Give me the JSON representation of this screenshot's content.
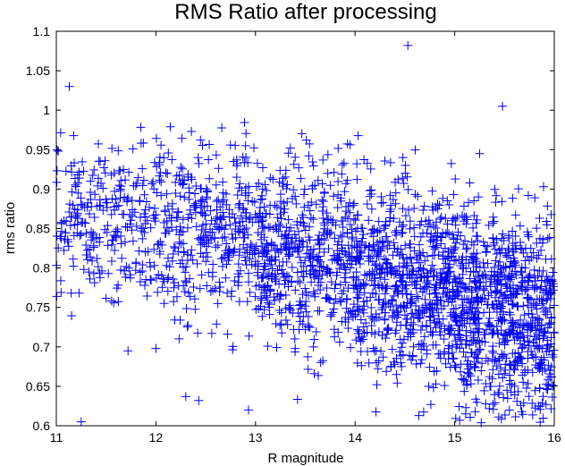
{
  "chart_data": {
    "type": "scatter",
    "title": "RMS Ratio after processing",
    "xlabel": "R magnitude",
    "ylabel": "rms ratio",
    "xlim": [
      11,
      16
    ],
    "ylim": [
      0.6,
      1.1
    ],
    "xticks": [
      "11",
      "12",
      "13",
      "14",
      "15",
      "16"
    ],
    "yticks": [
      "0.6",
      "0.65",
      "0.7",
      "0.75",
      "0.8",
      "0.85",
      "0.9",
      "0.95",
      "1",
      "1.05",
      "1.1"
    ],
    "grid": false,
    "marker": "+",
    "marker_color": "#0000ff",
    "outliers": [
      {
        "x": 11.13,
        "y": 1.03
      },
      {
        "x": 14.53,
        "y": 1.082
      },
      {
        "x": 15.48,
        "y": 1.005
      },
      {
        "x": 11.25,
        "y": 0.605
      },
      {
        "x": 12.93,
        "y": 0.62
      },
      {
        "x": 12.3,
        "y": 0.637
      },
      {
        "x": 12.43,
        "y": 0.632
      },
      {
        "x": 15.05,
        "y": 0.607
      },
      {
        "x": 15.25,
        "y": 0.945
      },
      {
        "x": 14.48,
        "y": 0.94
      },
      {
        "x": 12.9,
        "y": 0.955
      },
      {
        "x": 13.35,
        "y": 0.952
      },
      {
        "x": 11.72,
        "y": 0.695
      },
      {
        "x": 12.0,
        "y": 0.698
      }
    ],
    "point_cloud": {
      "points": 2600,
      "segments": [
        {
          "x_range": [
            11,
            12
          ],
          "y_center": 0.87,
          "y_spread": 0.05,
          "weight": 0.1
        },
        {
          "x_range": [
            12,
            13
          ],
          "y_center": 0.855,
          "y_spread": 0.055,
          "weight": 0.14
        },
        {
          "x_range": [
            13,
            14
          ],
          "y_center": 0.82,
          "y_spread": 0.06,
          "weight": 0.2
        },
        {
          "x_range": [
            14,
            15
          ],
          "y_center": 0.79,
          "y_spread": 0.06,
          "weight": 0.26
        },
        {
          "x_range": [
            15,
            16
          ],
          "y_center": 0.755,
          "y_spread": 0.065,
          "weight": 0.3
        }
      ]
    }
  }
}
